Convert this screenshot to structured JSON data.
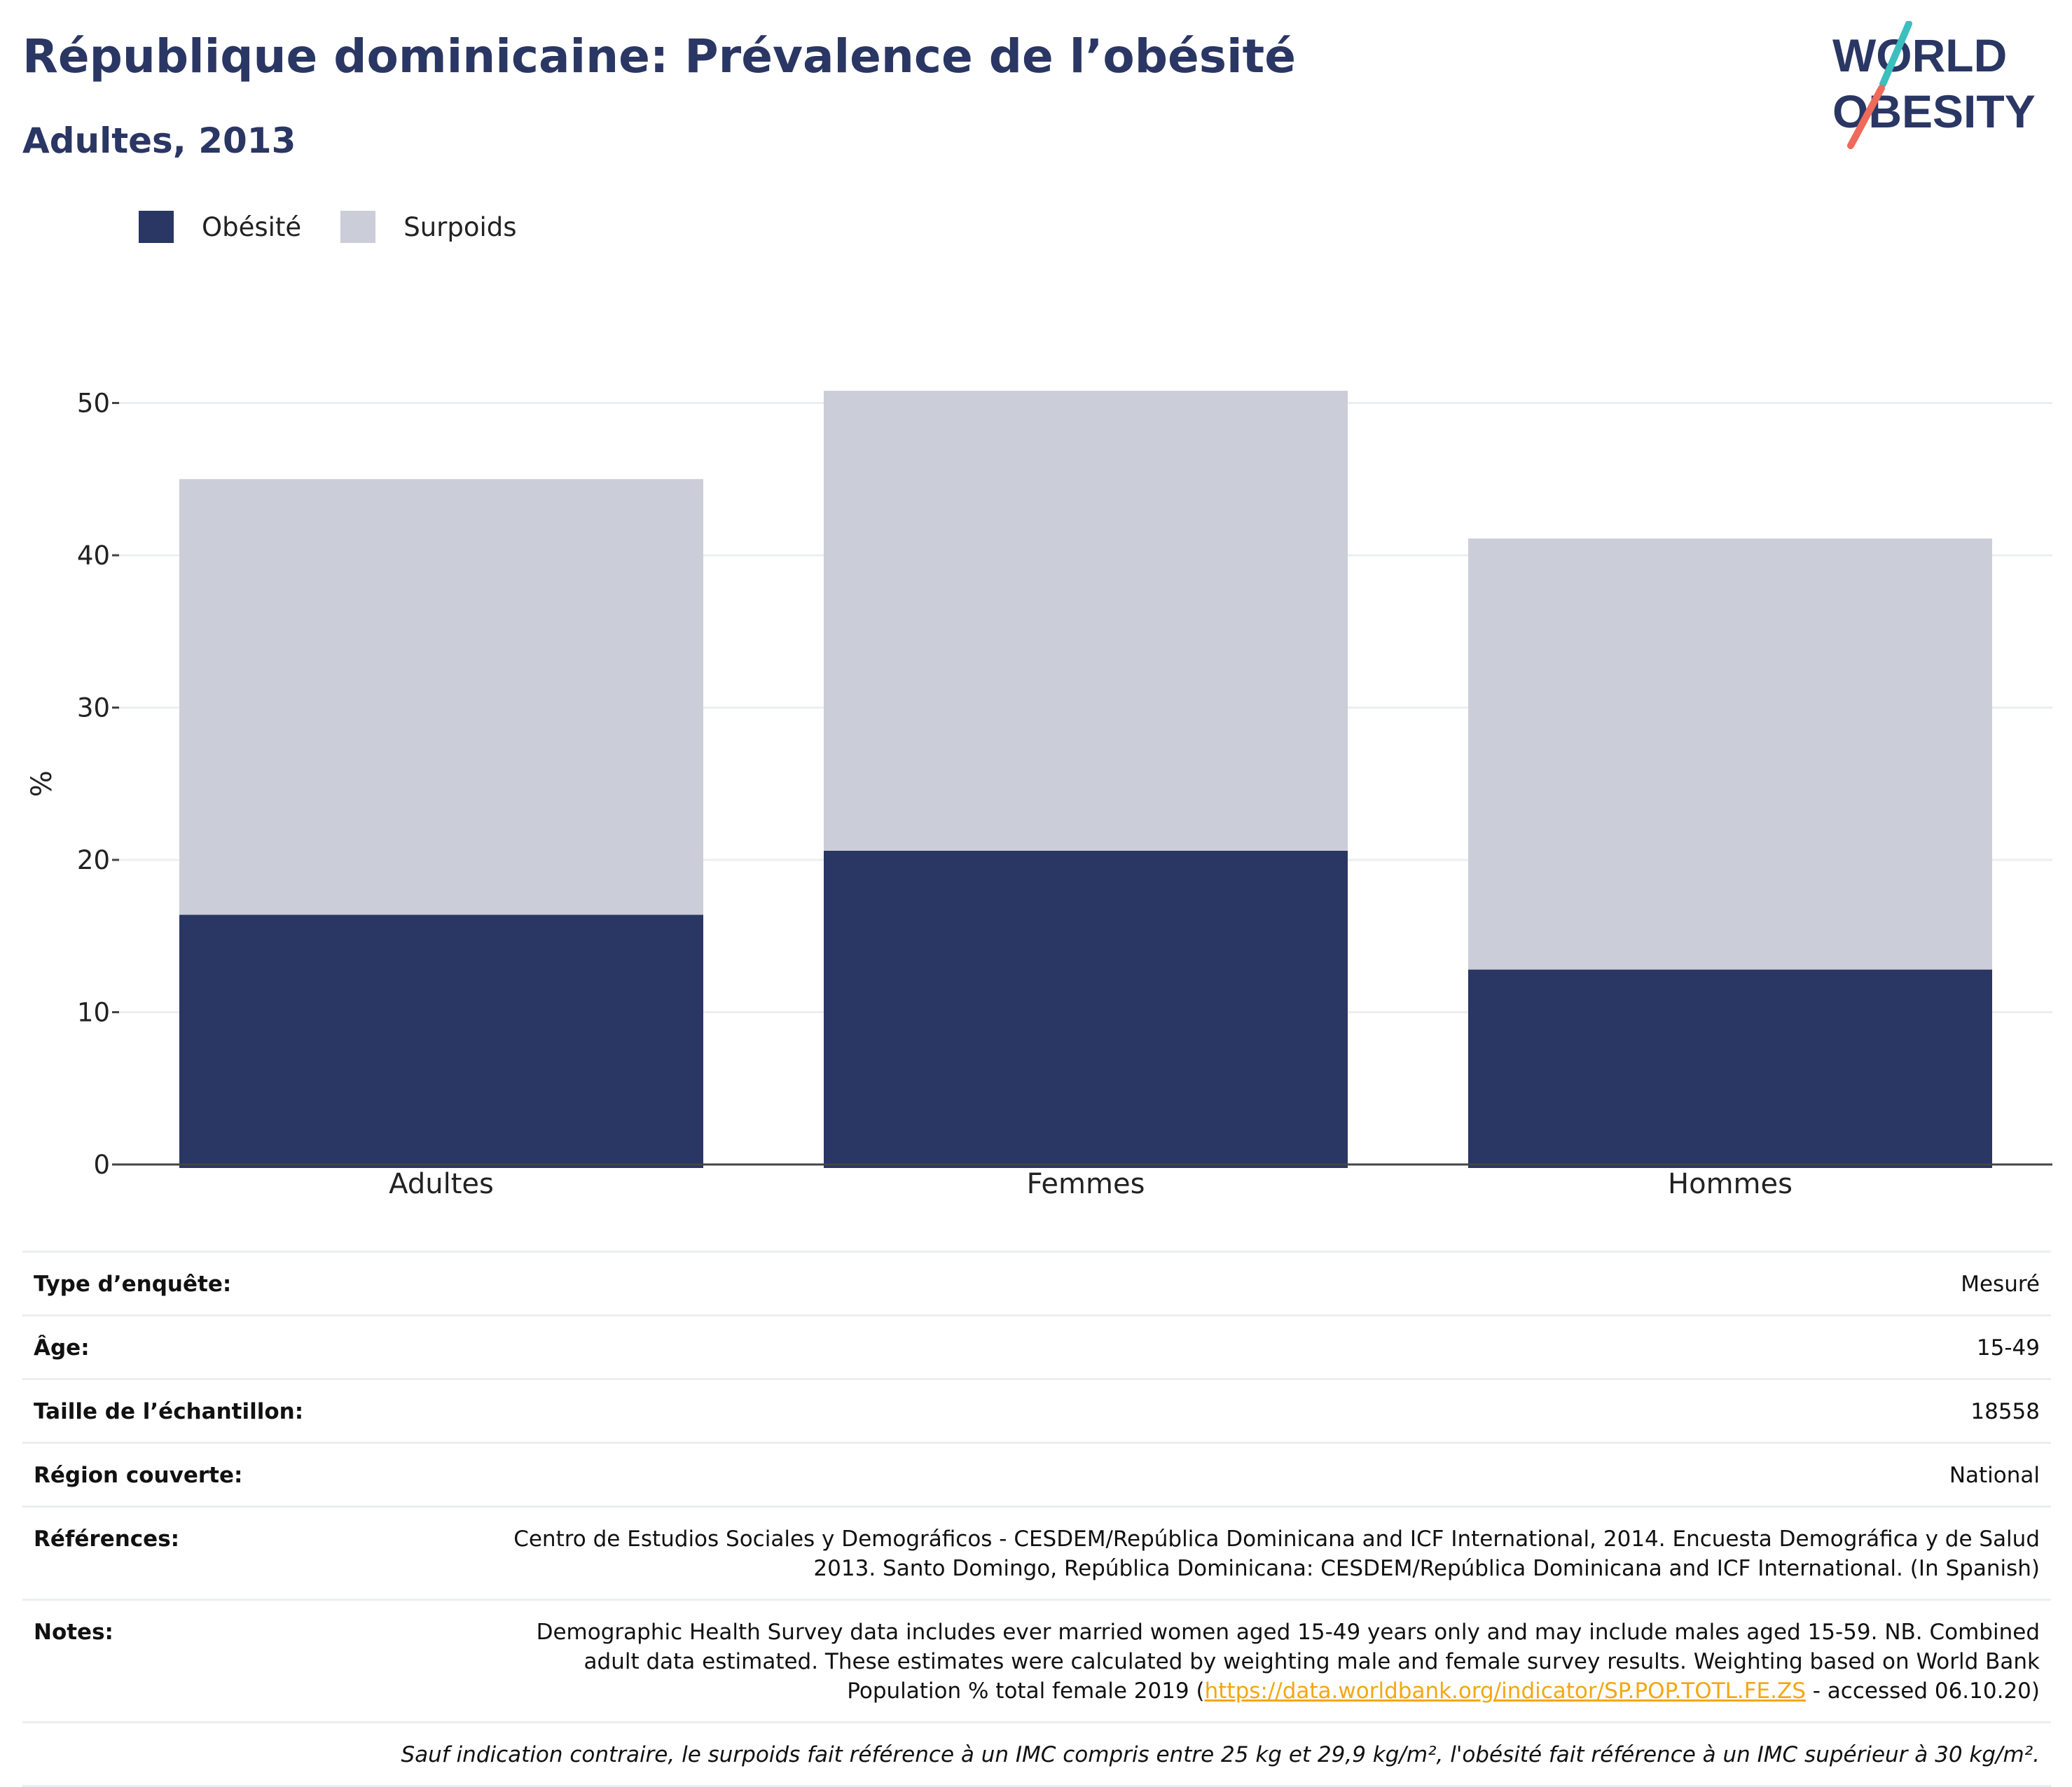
{
  "header": {
    "title": "République dominicaine: Prévalence de l’obésité",
    "subtitle": "Adultes, 2013"
  },
  "logo": {
    "line1": "WORLD",
    "line2": "OBESITY"
  },
  "colors": {
    "obesity": "#2a3663",
    "overweight": "#cbcdd8",
    "title": "#2a3663",
    "link": "#f3a712",
    "logo_slash_top": "#3bbfbf",
    "logo_slash_bottom": "#ee6a5a"
  },
  "legend": [
    {
      "label": "Obésité",
      "color": "#2a3663"
    },
    {
      "label": "Surpoids",
      "color": "#cbcdd8"
    }
  ],
  "chart_data": {
    "type": "bar",
    "stacked": true,
    "categories": [
      "Adultes",
      "Femmes",
      "Hommes"
    ],
    "series": [
      {
        "name": "Obésité",
        "values": [
          16.4,
          20.6,
          12.8
        ]
      },
      {
        "name": "Surpoids",
        "values": [
          28.6,
          30.2,
          28.3
        ]
      }
    ],
    "totals": [
      45.0,
      50.8,
      41.1
    ],
    "ylabel": "%",
    "xlabel": "",
    "ylim": [
      0,
      50
    ],
    "yticks": [
      0,
      10,
      20,
      30,
      40,
      50
    ],
    "grid": true,
    "legend_position": "top-left"
  },
  "info": {
    "rows": [
      {
        "label": "Type d’enquête:",
        "value": "Mesuré"
      },
      {
        "label": "Âge:",
        "value": "15-49"
      },
      {
        "label": "Taille de l’échantillon:",
        "value": "18558"
      },
      {
        "label": "Région couverte:",
        "value": "National"
      },
      {
        "label": "Références:",
        "value": "Centro de Estudios Sociales y Demográficos - CESDEM/República Dominicana and ICF International, 2014. Encuesta Demográfica y de Salud 2013. Santo Domingo, República Dominicana: CESDEM/República Dominicana and ICF International. (In Spanish)"
      }
    ],
    "notes": {
      "label": "Notes:",
      "text_before": "Demographic Health Survey data includes ever married women aged 15-49 years only and may include males aged 15-59. NB. Combined adult data estimated. These estimates were calculated by weighting male and female survey results. Weighting based on World Bank Population % total female 2019 (",
      "link": "https://data.worldbank.org/indicator/SP.POP.TOTL.FE.ZS",
      "text_after": " - accessed 06.10.20)"
    },
    "footnote": "Sauf indication contraire, le surpoids fait référence à un IMC compris entre 25 kg et 29,9 kg/m², l'obésité fait référence à un IMC supérieur à 30 kg/m²."
  }
}
